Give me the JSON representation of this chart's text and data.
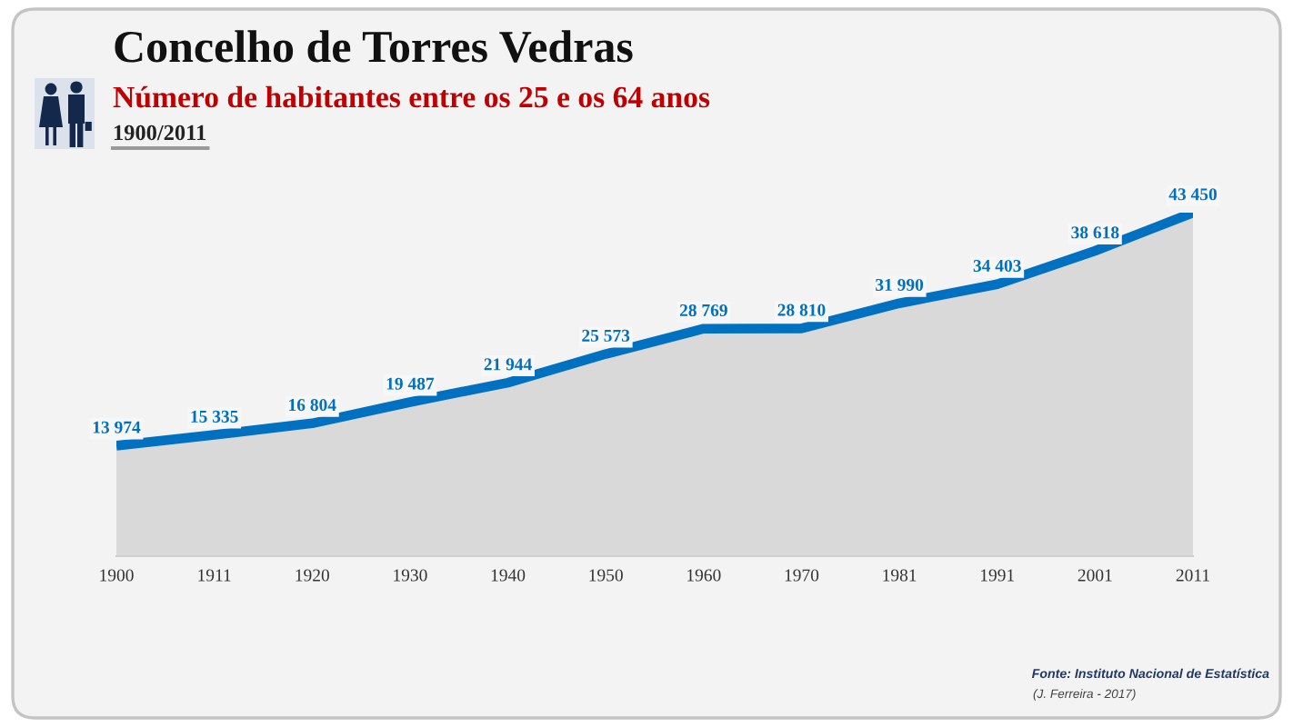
{
  "chart_data": {
    "type": "area",
    "title": "Concelho de Torres Vedras",
    "subtitle": "Número de habitantes entre os 25 e os 64 anos",
    "annotations": [
      "1900/2011",
      "Fonte: Instituto Nacional de Estatística",
      "(J. Ferreira - 2017)"
    ],
    "categories": [
      "1900",
      "1911",
      "1920",
      "1930",
      "1940",
      "1950",
      "1960",
      "1970",
      "1981",
      "1991",
      "2001",
      "2011"
    ],
    "series": [
      {
        "color": "#0070c0",
        "values": [
          13974,
          15335,
          16804,
          19487,
          21944,
          25573,
          28769,
          28810,
          31990,
          34403,
          38618,
          43450
        ],
        "value_labels": [
          "13 974",
          "15 335",
          "16 804",
          "19 487",
          "21 944",
          "25 573",
          "28 769",
          "28 810",
          "31 990",
          "34 403",
          "38 618",
          "43 450"
        ]
      }
    ],
    "tick_labels": "x",
    "line_style": "solid"
  }
}
